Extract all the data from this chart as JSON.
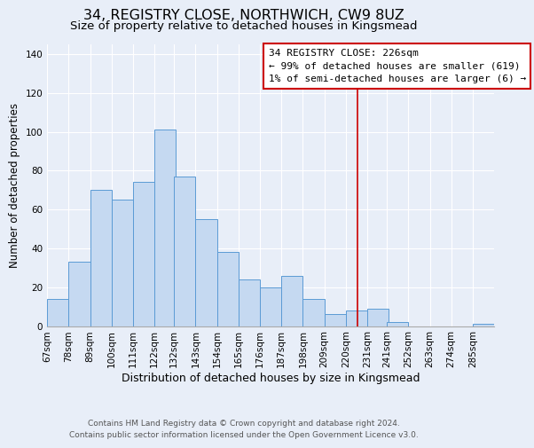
{
  "title": "34, REGISTRY CLOSE, NORTHWICH, CW9 8UZ",
  "subtitle": "Size of property relative to detached houses in Kingsmead",
  "xlabel": "Distribution of detached houses by size in Kingsmead",
  "ylabel": "Number of detached properties",
  "bins": [
    67,
    78,
    89,
    100,
    111,
    122,
    132,
    143,
    154,
    165,
    176,
    187,
    198,
    209,
    220,
    231,
    241,
    252,
    263,
    274,
    285
  ],
  "counts": [
    14,
    33,
    70,
    65,
    74,
    101,
    77,
    55,
    38,
    24,
    20,
    26,
    14,
    6,
    8,
    9,
    2,
    0,
    0,
    0,
    1
  ],
  "bar_color": "#c5d9f1",
  "bar_edge_color": "#5b9bd5",
  "vline_x": 226,
  "vline_color": "#cc0000",
  "annotation_title": "34 REGISTRY CLOSE: 226sqm",
  "annotation_line1": "← 99% of detached houses are smaller (619)",
  "annotation_line2": "1% of semi-detached houses are larger (6) →",
  "annotation_box_color": "#ffffff",
  "annotation_box_edge": "#cc0000",
  "ylim": [
    0,
    145
  ],
  "yticks": [
    0,
    20,
    40,
    60,
    80,
    100,
    120,
    140
  ],
  "footer_line1": "Contains HM Land Registry data © Crown copyright and database right 2024.",
  "footer_line2": "Contains public sector information licensed under the Open Government Licence v3.0.",
  "background_color": "#e8eef8",
  "plot_background": "#e8eef8",
  "title_fontsize": 11.5,
  "subtitle_fontsize": 9.5,
  "xlabel_fontsize": 9,
  "ylabel_fontsize": 8.5,
  "tick_fontsize": 7.5,
  "annotation_fontsize": 8,
  "footer_fontsize": 6.5
}
